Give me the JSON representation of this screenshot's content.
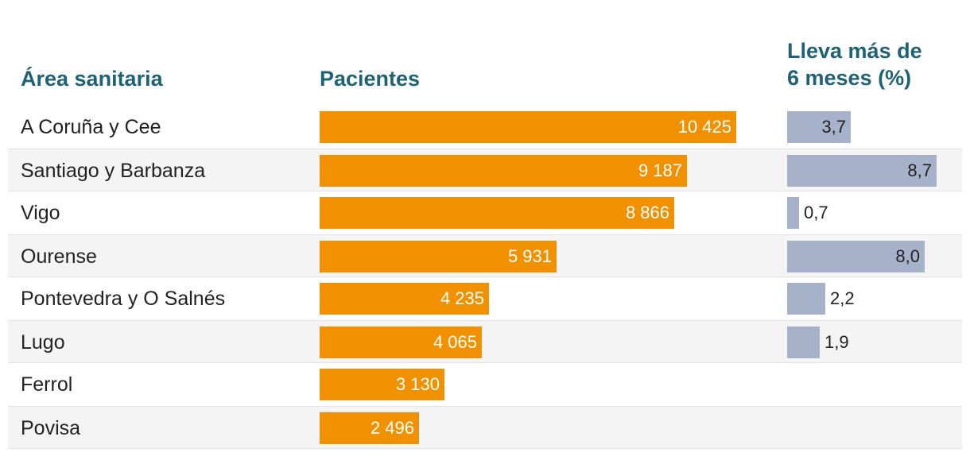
{
  "chart_data": {
    "type": "table",
    "columns": [
      "Área sanitaria",
      "Pacientes",
      "Lleva más de 6 meses (%)"
    ],
    "header_lleva_lines": [
      "Lleva más de",
      "6 meses (%)"
    ],
    "colors": {
      "header": "#1f6275",
      "pacientes_bar": "#f29100",
      "lleva_bar": "#a6b1ca"
    },
    "rows": [
      {
        "area": "A Coruña y Cee",
        "pacientes": 10425,
        "pacientes_label": "10 425",
        "lleva": 3.7,
        "lleva_label": "3,7"
      },
      {
        "area": "Santiago y Barbanza",
        "pacientes": 9187,
        "pacientes_label": "9 187",
        "lleva": 8.7,
        "lleva_label": "8,7"
      },
      {
        "area": "Vigo",
        "pacientes": 8866,
        "pacientes_label": "8 866",
        "lleva": 0.7,
        "lleva_label": "0,7"
      },
      {
        "area": "Ourense",
        "pacientes": 5931,
        "pacientes_label": "5 931",
        "lleva": 8.0,
        "lleva_label": "8,0"
      },
      {
        "area": "Pontevedra y O Salnés",
        "pacientes": 4235,
        "pacientes_label": "4 235",
        "lleva": 2.2,
        "lleva_label": "2,2"
      },
      {
        "area": "Lugo",
        "pacientes": 4065,
        "pacientes_label": "4 065",
        "lleva": 1.9,
        "lleva_label": "1,9"
      },
      {
        "area": "Ferrol",
        "pacientes": 3130,
        "pacientes_label": "3 130",
        "lleva": null,
        "lleva_label": ""
      },
      {
        "area": "Povisa",
        "pacientes": 2496,
        "pacientes_label": "2 496",
        "lleva": null,
        "lleva_label": ""
      }
    ]
  }
}
